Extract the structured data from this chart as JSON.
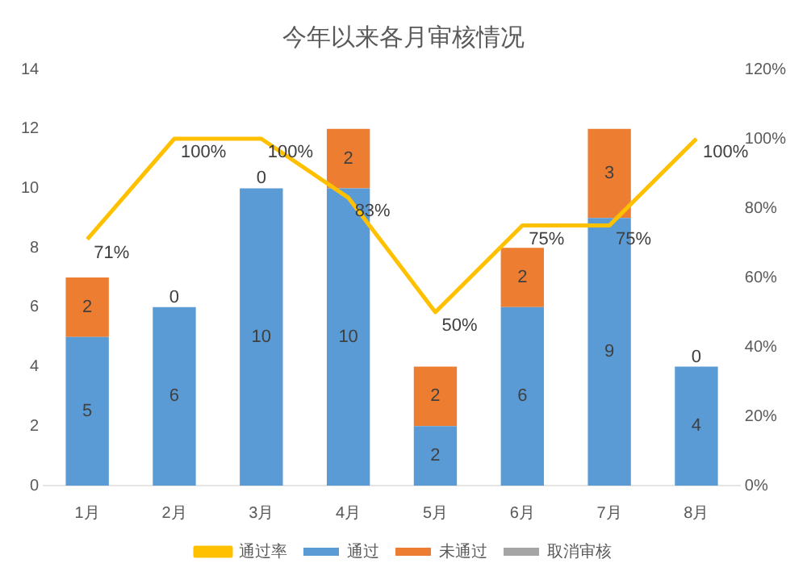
{
  "chart_data": {
    "type": "bar",
    "title": "今年以来各月审核情况",
    "categories": [
      "1月",
      "2月",
      "3月",
      "4月",
      "5月",
      "6月",
      "7月",
      "8月"
    ],
    "stacked": true,
    "series": [
      {
        "name": "通过",
        "color": "#5b9bd5",
        "values": [
          5,
          6,
          10,
          10,
          2,
          6,
          9,
          4
        ],
        "value_labels": [
          "5",
          "6",
          "10",
          "10",
          "2",
          "6",
          "9",
          "4"
        ]
      },
      {
        "name": "未通过",
        "color": "#ed7d31",
        "values": [
          2,
          0,
          0,
          2,
          2,
          2,
          3,
          0
        ],
        "value_labels": [
          "2",
          "0",
          "0",
          "2",
          "2",
          "2",
          "3",
          "0"
        ]
      },
      {
        "name": "取消审核",
        "color": "#a5a5a5",
        "values": [
          0,
          0,
          0,
          0,
          0,
          0,
          0,
          0
        ]
      },
      {
        "name": "通过率",
        "type": "line",
        "axis": "y2",
        "color": "#ffc000",
        "values": [
          71,
          100,
          100,
          83,
          50,
          75,
          75,
          100
        ],
        "value_labels": [
          "71%",
          "100%",
          "100%",
          "83%",
          "50%",
          "75%",
          "75%",
          "100%"
        ]
      }
    ],
    "ylim": [
      0,
      14
    ],
    "yticks": [
      0,
      2,
      4,
      6,
      8,
      10,
      12,
      14
    ],
    "y2lim": [
      0,
      120
    ],
    "y2ticks": [
      {
        "value": 0,
        "label": "0%"
      },
      {
        "value": 20,
        "label": "20%"
      },
      {
        "value": 40,
        "label": "40%"
      },
      {
        "value": 60,
        "label": "60%"
      },
      {
        "value": 80,
        "label": "80%"
      },
      {
        "value": 100,
        "label": "100%"
      },
      {
        "value": 120,
        "label": "120%"
      }
    ],
    "grid": false,
    "legend": "bottom",
    "marker": "none"
  }
}
